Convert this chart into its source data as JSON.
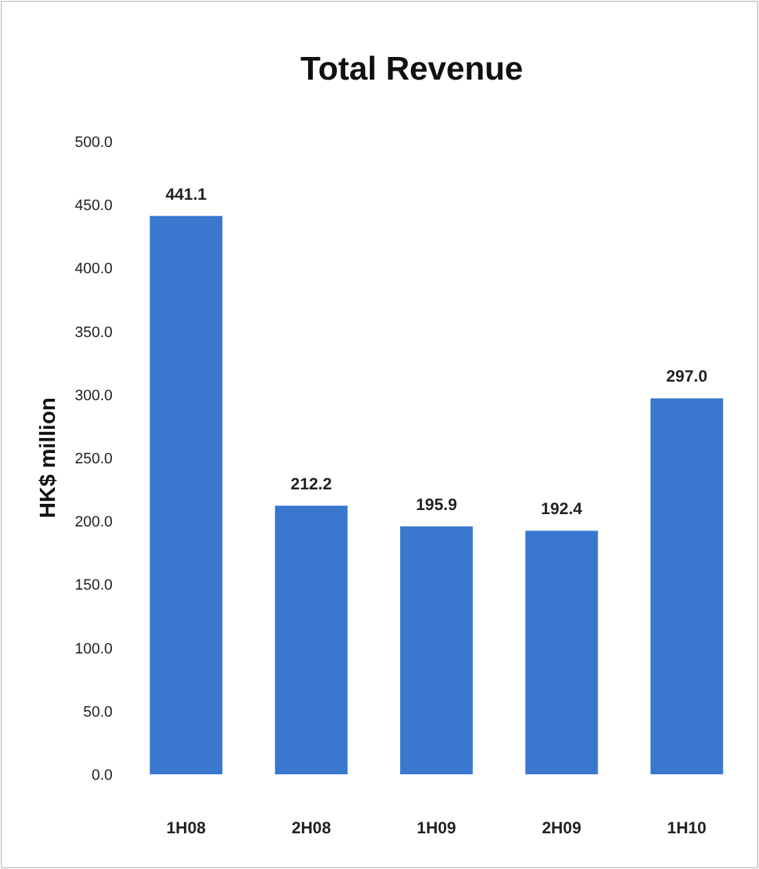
{
  "chart_data": {
    "type": "bar",
    "title": "Total Revenue",
    "ylabel": "HK$ million",
    "categories": [
      "1H08",
      "2H08",
      "1H09",
      "2H09",
      "1H10"
    ],
    "values": [
      441.1,
      212.2,
      195.9,
      192.4,
      297.0
    ],
    "value_labels": [
      "441.1",
      "212.2",
      "195.9",
      "192.4",
      "297.0"
    ],
    "color": "#3a78d0",
    "ylim": [
      0,
      500
    ],
    "yticks": [
      {
        "value": 0,
        "label": "0.0"
      },
      {
        "value": 50,
        "label": "50.0"
      },
      {
        "value": 100,
        "label": "100.0"
      },
      {
        "value": 150,
        "label": "150.0"
      },
      {
        "value": 200,
        "label": "200.0"
      },
      {
        "value": 250,
        "label": "250.0"
      },
      {
        "value": 300,
        "label": "300.0"
      },
      {
        "value": 350,
        "label": "350.0"
      },
      {
        "value": 400,
        "label": "400.0"
      },
      {
        "value": 450,
        "label": "450.0"
      },
      {
        "value": 500,
        "label": "500.0"
      }
    ]
  }
}
